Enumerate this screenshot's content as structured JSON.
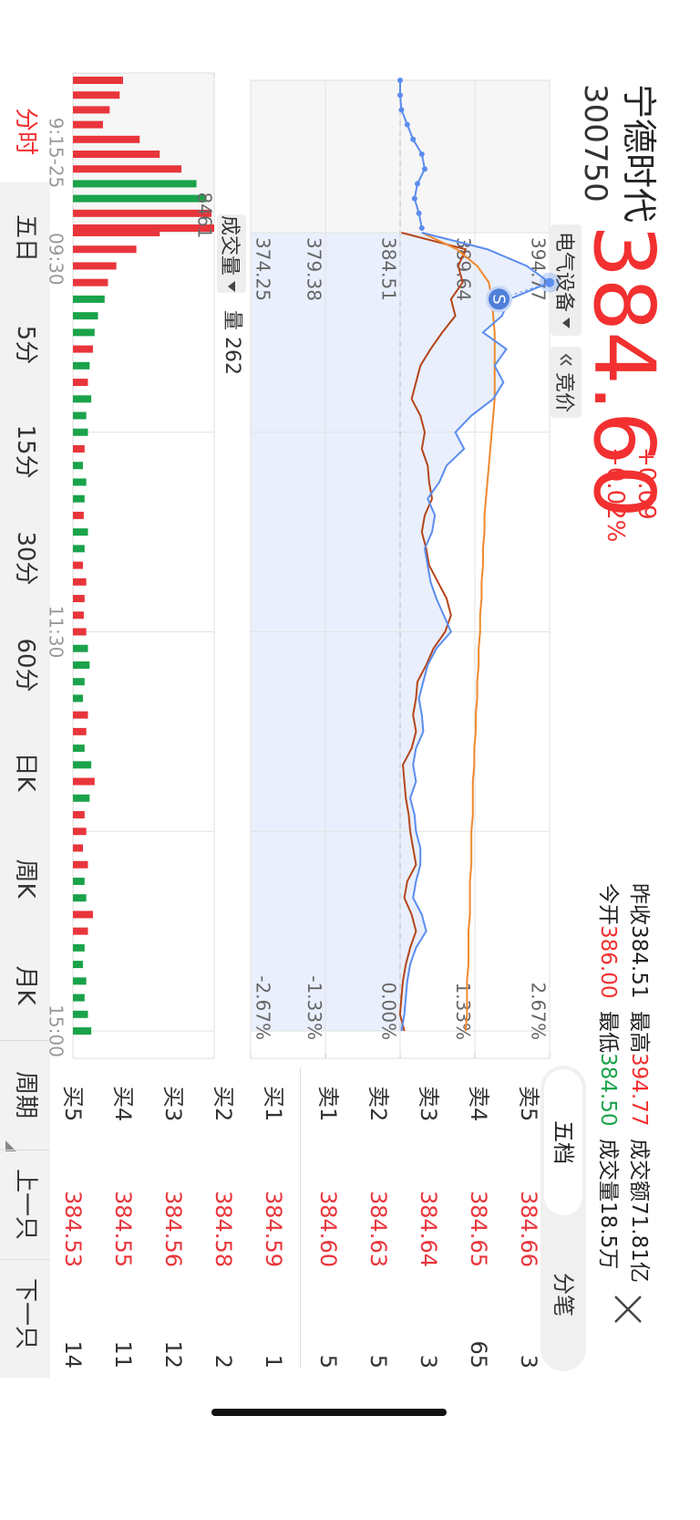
{
  "header": {
    "name": "宁德时代",
    "code": "300750",
    "price": "384.60",
    "change": "+0.09",
    "change_pct": "+0.02%",
    "sector": "电气设备",
    "auction": "竞价",
    "stats": [
      {
        "label": "昨收",
        "value": "384.51"
      },
      {
        "label": "最高",
        "value": "394.77"
      },
      {
        "label": "成交额",
        "value": "71.81亿"
      },
      {
        "label": "今开",
        "value": "386.00"
      },
      {
        "label": "最低",
        "value": "384.50"
      },
      {
        "label": "成交量",
        "value": "18.5万"
      }
    ]
  },
  "order_book": {
    "tabs": [
      "五档",
      "分笔"
    ],
    "sell": [
      {
        "label": "卖5",
        "price": "384.66",
        "volume": "3"
      },
      {
        "label": "卖4",
        "price": "384.65",
        "volume": "65"
      },
      {
        "label": "卖3",
        "price": "384.64",
        "volume": "3"
      },
      {
        "label": "卖2",
        "price": "384.63",
        "volume": "5"
      },
      {
        "label": "卖1",
        "price": "384.60",
        "volume": "5"
      }
    ],
    "buy": [
      {
        "label": "买1",
        "price": "384.59",
        "volume": "1"
      },
      {
        "label": "买2",
        "price": "384.58",
        "volume": "2"
      },
      {
        "label": "买3",
        "price": "384.56",
        "volume": "12"
      },
      {
        "label": "买4",
        "price": "384.55",
        "volume": "11"
      },
      {
        "label": "买5",
        "price": "384.53",
        "volume": "14"
      }
    ]
  },
  "tabs": [
    "分时",
    "五日",
    "5分",
    "15分",
    "30分",
    "60分",
    "日K",
    "周K",
    "月K"
  ],
  "actions": [
    "周期",
    "上一只",
    "下一只"
  ],
  "chart_data": {
    "type": "line",
    "x": [
      0,
      5,
      10,
      15,
      20,
      25,
      30,
      35,
      40,
      45,
      50,
      55,
      60,
      65,
      70,
      75,
      80,
      85,
      90,
      95,
      100,
      105,
      110,
      115,
      120,
      125,
      130,
      135,
      140,
      145,
      150,
      155,
      160,
      165,
      170,
      175,
      180,
      185,
      190,
      195,
      200,
      205,
      210,
      215,
      220,
      225,
      230,
      235,
      240
    ],
    "xlim": [
      0,
      240
    ],
    "xticks": [
      {
        "value": 0,
        "label": "09:30"
      },
      {
        "value": 120,
        "label": "11:30"
      },
      {
        "value": 240,
        "label": "15:00"
      }
    ],
    "ylim": [
      374.25,
      394.77
    ],
    "yticks": [
      394.77,
      389.64,
      384.51,
      379.38,
      374.25
    ],
    "y2lim": [
      -2.67,
      2.67
    ],
    "y2ticks": [
      {
        "value": 2.67,
        "label": "2.67%"
      },
      {
        "value": 1.33,
        "label": "1.33%"
      },
      {
        "value": 0,
        "label": "0.00%"
      },
      {
        "value": -1.33,
        "label": "-1.33%"
      },
      {
        "value": -2.67,
        "label": "-2.67%"
      }
    ],
    "series": [
      {
        "color": "#5b8def",
        "fill": "#e9effc",
        "values": [
          386,
          390.5,
          393.2,
          394.77,
          392.0,
          391.5,
          390.2,
          391.8,
          391.0,
          391.6,
          390.9,
          389.4,
          388.3,
          388.9,
          387.7,
          387.2,
          386.4,
          386.9,
          386.7,
          386.2,
          386.4,
          386.6,
          387.0,
          387.5,
          388.0,
          387.0,
          386.4,
          386.1,
          385.8,
          386.0,
          386.1,
          385.6,
          385.4,
          385.6,
          385.2,
          385.5,
          385.6,
          385.9,
          385.9,
          385.6,
          385.4,
          386.0,
          386.3,
          385.6,
          385.2,
          385.0,
          384.9,
          384.8,
          384.6
        ]
      },
      {
        "color": "#f0892e",
        "values": [
          386.0,
          388.4,
          389.8,
          390.6,
          390.8,
          390.9,
          391.0,
          391.0,
          391.0,
          391.0,
          391.0,
          390.9,
          390.8,
          390.7,
          390.6,
          390.5,
          390.4,
          390.3,
          390.3,
          390.2,
          390.2,
          390.1,
          390.1,
          390.0,
          390.0,
          389.9,
          389.9,
          389.8,
          389.8,
          389.7,
          389.7,
          389.6,
          389.6,
          389.5,
          389.5,
          389.5,
          389.4,
          389.4,
          389.4,
          389.3,
          389.3,
          389.3,
          389.2,
          389.2,
          389.2,
          389.1,
          389.1,
          389.1,
          389.0
        ]
      },
      {
        "color": "#b5451b",
        "values": [
          384.6,
          389.0,
          388.5,
          388.8,
          388.0,
          388.3,
          387.4,
          386.6,
          385.9,
          385.6,
          385.3,
          385.9,
          386.2,
          386.0,
          386.4,
          386.5,
          386.7,
          386.2,
          386.0,
          386.3,
          386.5,
          387.1,
          387.7,
          388.0,
          387.6,
          386.8,
          386.3,
          385.7,
          385.6,
          385.4,
          385.6,
          385.3,
          384.7,
          384.8,
          384.9,
          385.1,
          385.2,
          385.4,
          385.6,
          385.0,
          384.8,
          385.3,
          385.6,
          385.2,
          384.9,
          384.7,
          384.6,
          384.5,
          384.8
        ]
      }
    ],
    "volumes": [
      5200,
      3800,
      2600,
      2100,
      1900,
      1500,
      1300,
      1200,
      1000,
      900,
      1100,
      800,
      900,
      700,
      600,
      800,
      700,
      650,
      900,
      700,
      600,
      800,
      700,
      650,
      800,
      900,
      1000,
      700,
      600,
      900,
      800,
      700,
      1100,
      1300,
      1000,
      700,
      800,
      600,
      900,
      700,
      800,
      1200,
      900,
      700,
      600,
      800,
      700,
      900,
      1100
    ],
    "up_color": "#e8353b",
    "down_color": "#1aa34a",
    "volume_axis": {
      "label": "成交量",
      "current": "量 262",
      "ylim": [
        0,
        8461
      ],
      "yticks": [
        8461
      ]
    },
    "auction": {
      "label": "9:15-25",
      "xlim": [
        0,
        10
      ],
      "x": [
        0,
        1,
        2,
        3,
        4,
        5,
        6,
        7,
        8,
        9,
        10
      ],
      "values": [
        384.51,
        384.51,
        384.6,
        385.0,
        385.4,
        386.0,
        386.2,
        385.7,
        385.5,
        385.8,
        386.0
      ],
      "volumes": [
        3000,
        2800,
        2200,
        1800,
        4000,
        5200,
        6500,
        7400,
        8000,
        8300,
        8461
      ]
    },
    "trade_marker": {
      "label": "S",
      "x": 20,
      "value": 391.3
    },
    "grid": true
  }
}
